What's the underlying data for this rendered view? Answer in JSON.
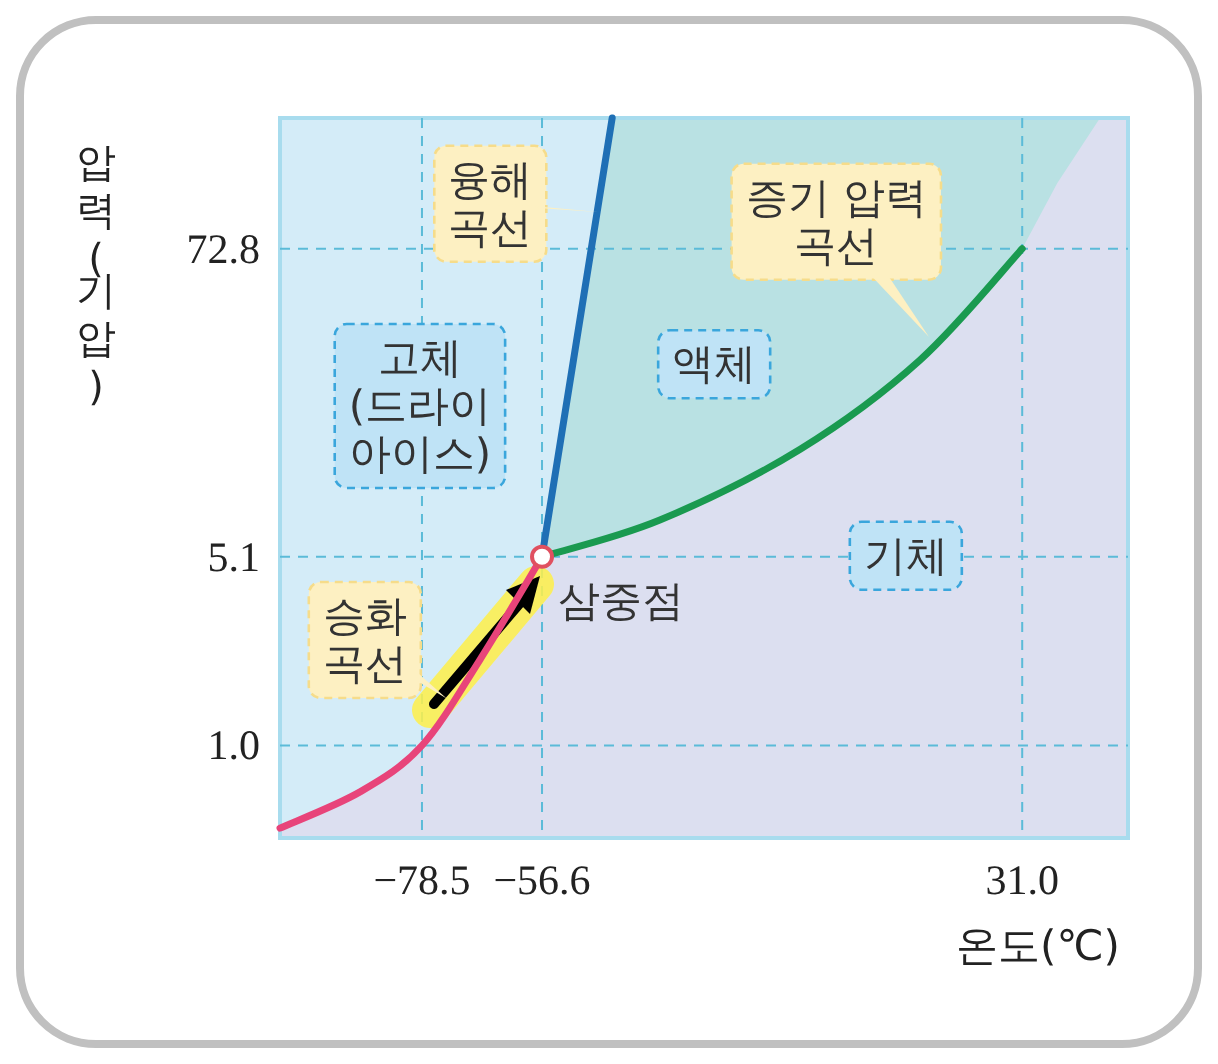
{
  "chart_data": {
    "type": "line",
    "xlabel": "온도(℃)",
    "ylabel": "압력(기압)",
    "log": "y",
    "xlim": [
      -104.4,
      50.3
    ],
    "ylim": [
      0.45,
      225
    ],
    "xticks": [
      {
        "value": -78.5,
        "label": "−78.5"
      },
      {
        "value": -56.6,
        "label": "−56.6"
      },
      {
        "value": 31,
        "label": "31.0"
      }
    ],
    "yticks": [
      {
        "value": 1,
        "label": "1.0"
      },
      5.1,
      72.8
    ],
    "series": [
      {
        "color": "#e8447a",
        "x": [
          -104.4,
          -89.8,
          -78.5,
          -67.9,
          -56.6
        ],
        "values": [
          0.49,
          0.67,
          1.0,
          2.1,
          5.1
        ]
      },
      {
        "color": "#1f6fb5",
        "x": [
          -56.6,
          -43.8
        ],
        "values": [
          5.1,
          225
        ]
      },
      {
        "color": "#1a9a50",
        "x": [
          -56.6,
          -35.1,
          -9.5,
          12.4,
          31
        ],
        "values": [
          5.1,
          7.0,
          12.9,
          27.9,
          72.8
        ]
      },
      {
        "type": "scatter",
        "color": "#e05060",
        "x": [
          -56.6
        ],
        "values": [
          5.1
        ]
      }
    ],
    "ref_lines": [
      {
        "axis": "x",
        "value": -78.5,
        "color": "#5bbbd8",
        "line_style": "dashed"
      },
      {
        "axis": "x",
        "value": -56.6,
        "color": "#5bbbd8",
        "line_style": "dashed"
      },
      {
        "axis": "x",
        "value": 31,
        "color": "#5bbbd8",
        "line_style": "dashed"
      },
      {
        "axis": "y",
        "value": 1,
        "color": "#5bbbd8",
        "line_style": "dashed"
      },
      {
        "axis": "y",
        "value": 5.1,
        "color": "#5bbbd8",
        "line_style": "dashed"
      },
      {
        "axis": "y",
        "value": 72.8,
        "color": "#5bbbd8",
        "line_style": "dashed"
      }
    ],
    "annotations": [
      {
        "text": "융해\n곡선",
        "x": -46.4,
        "y": 100
      },
      {
        "text": "증기 압력\n곡선",
        "x": 14,
        "y": 34
      },
      {
        "text": "승화\n곡선",
        "x": -74,
        "y": 1.5
      },
      "고체\n(드라이\n아이스)",
      "액체",
      "기체",
      {
        "text": "삼중점",
        "x": -56.6,
        "y": 5.1
      }
    ]
  }
}
